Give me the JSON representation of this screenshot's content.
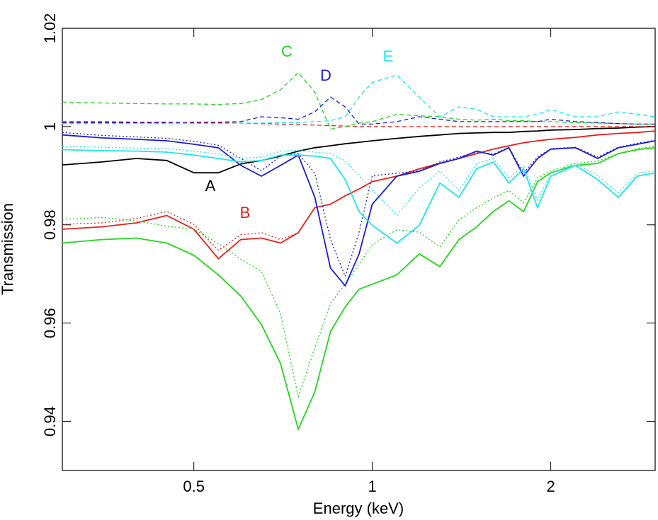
{
  "chart_data": {
    "type": "line",
    "x_label": "Energy (keV)",
    "y_label": "Transmission",
    "log_x": true,
    "xlim": [
      0.3,
      3
    ],
    "xticks": [
      0.5,
      1,
      2
    ],
    "ylim": [
      0.93,
      1.02
    ],
    "yticks": [
      0.94,
      0.96,
      0.98,
      1,
      1.02
    ],
    "x": [
      0.3,
      0.35,
      0.4,
      0.45,
      0.5,
      0.55,
      0.6,
      0.65,
      0.7,
      0.75,
      0.8,
      0.85,
      0.9,
      0.95,
      1.0,
      1.1,
      1.2,
      1.3,
      1.4,
      1.5,
      1.6,
      1.7,
      1.8,
      1.9,
      2.0,
      2.2,
      2.4,
      2.6,
      2.8,
      3.0
    ],
    "series": [
      {
        "name": "A",
        "color": "#000000",
        "line_style": "solid",
        "values": [
          0.9922,
          0.9928,
          0.9935,
          0.9931,
          0.9906,
          0.9906,
          0.9924,
          0.9931,
          0.994,
          0.995,
          0.9957,
          0.9961,
          0.9965,
          0.9968,
          0.9971,
          0.9976,
          0.998,
          0.9983,
          0.9986,
          0.9987,
          0.9988,
          0.9988,
          0.999,
          0.9991,
          0.9993,
          0.9994,
          0.9996,
          0.9997,
          0.9999,
          1.0
        ]
      },
      {
        "name": "B",
        "color": "#e8201c",
        "line_style": "solid",
        "values": [
          0.9791,
          0.9796,
          0.9804,
          0.9819,
          0.9791,
          0.9731,
          0.977,
          0.9773,
          0.9763,
          0.9784,
          0.9835,
          0.9842,
          0.9859,
          0.9873,
          0.9888,
          0.9899,
          0.9914,
          0.9925,
          0.9935,
          0.9945,
          0.9954,
          0.9961,
          0.9967,
          0.9971,
          0.9974,
          0.9978,
          0.9983,
          0.9986,
          0.9988,
          0.9991
        ]
      },
      {
        "color": "#e8201c",
        "line_style": "dotted",
        "values": [
          0.9801,
          0.9804,
          0.9813,
          0.9827,
          0.9801,
          0.9748,
          0.978,
          0.9784,
          0.977,
          0.9784,
          0.9835,
          0.9842,
          0.9859,
          0.9873,
          0.9888,
          0.9899,
          0.9914,
          0.9925,
          0.9935,
          0.9945,
          0.9954,
          0.9961,
          0.9967,
          0.9971,
          0.9974,
          0.9978,
          0.9983,
          0.9986,
          0.9988,
          0.9991
        ]
      },
      {
        "color": "#e8201c",
        "line_style": "dashed",
        "values": [
          1.001,
          1.001,
          1.0009,
          1.0009,
          1.0008,
          1.0008,
          1.0007,
          1.0006,
          1.0005,
          1.0004,
          1.0003,
          1.0002,
          1.0001,
          1.0,
          1.0,
          1.0,
          1.0,
          1.0,
          1.0,
          1.0,
          1.0,
          1.0,
          1.0,
          1.0,
          1.0,
          1.0,
          1.0,
          1.0,
          1.0,
          1.0
        ]
      },
      {
        "name": "C",
        "color": "#22d81c",
        "line_style": "solid",
        "values": [
          0.9763,
          0.977,
          0.9773,
          0.9763,
          0.9738,
          0.9698,
          0.9655,
          0.9597,
          0.9518,
          0.9384,
          0.946,
          0.9583,
          0.9633,
          0.9669,
          0.9679,
          0.9698,
          0.9741,
          0.9715,
          0.977,
          0.9796,
          0.9827,
          0.9849,
          0.9827,
          0.9888,
          0.9906,
          0.9921,
          0.9925,
          0.9945,
          0.9953,
          0.9957
        ]
      },
      {
        "color": "#22d81c",
        "line_style": "dotted",
        "values": [
          0.9811,
          0.9815,
          0.9808,
          0.9797,
          0.9791,
          0.9762,
          0.973,
          0.9705,
          0.962,
          0.945,
          0.955,
          0.964,
          0.968,
          0.972,
          0.976,
          0.979,
          0.9785,
          0.9755,
          0.981,
          0.9835,
          0.9855,
          0.987,
          0.9845,
          0.9895,
          0.991,
          0.9925,
          0.993,
          0.9945,
          0.9955,
          0.996
        ]
      },
      {
        "color": "#22d81c",
        "line_style": "dashed",
        "values": [
          1.005,
          1.0048,
          1.0047,
          1.0046,
          1.0046,
          1.0045,
          1.0047,
          1.0055,
          1.0075,
          1.011,
          1.007,
          0.9995,
          1.0,
          1.0007,
          1.001,
          1.0025,
          1.0022,
          1.002,
          1.0015,
          1.0013,
          1.0015,
          1.0012,
          1.0012,
          1.001,
          1.001,
          1.0008,
          1.0007,
          1.0006,
          1.0005,
          1.0005
        ]
      },
      {
        "name": "D",
        "color": "#1c1cd8",
        "line_style": "solid",
        "values": [
          0.9983,
          0.9977,
          0.9974,
          0.9971,
          0.9964,
          0.9957,
          0.9921,
          0.9899,
          0.9921,
          0.9942,
          0.9856,
          0.9712,
          0.9676,
          0.9741,
          0.9842,
          0.9899,
          0.9909,
          0.9925,
          0.9935,
          0.995,
          0.9942,
          0.9957,
          0.9899,
          0.9935,
          0.9954,
          0.9957,
          0.9935,
          0.9957,
          0.9964,
          0.9971
        ]
      },
      {
        "color": "#1c1cd8",
        "line_style": "dotted",
        "values": [
          0.9988,
          0.9982,
          0.9979,
          0.9976,
          0.997,
          0.9962,
          0.9935,
          0.991,
          0.994,
          0.9945,
          0.9905,
          0.977,
          0.9695,
          0.9785,
          0.99,
          0.9905,
          0.991,
          0.9928,
          0.9938,
          0.9948,
          0.9944,
          0.9958,
          0.9905,
          0.9938,
          0.9955,
          0.9958,
          0.9938,
          0.9958,
          0.9966,
          0.9972
        ]
      },
      {
        "color": "#1c1cd8",
        "line_style": "dashed",
        "values": [
          1.0008,
          1.0008,
          1.0008,
          1.0008,
          1.0009,
          1.0009,
          1.001,
          1.002,
          1.0018,
          1.0015,
          1.003,
          1.006,
          1.004,
          1.0005,
          1.0005,
          1.001,
          1.002,
          1.0015,
          1.001,
          1.001,
          1.001,
          1.001,
          1.001,
          1.001,
          1.0015,
          1.001,
          1.0008,
          1.0006,
          1.0005,
          1.0005
        ]
      },
      {
        "name": "E",
        "color": "#1ce8e8",
        "line_style": "solid",
        "values": [
          0.9953,
          0.9951,
          0.995,
          0.9948,
          0.9942,
          0.9935,
          0.9928,
          0.9931,
          0.9942,
          0.9942,
          0.994,
          0.9935,
          0.9892,
          0.9827,
          0.9799,
          0.9763,
          0.9799,
          0.9885,
          0.9856,
          0.9914,
          0.9928,
          0.9885,
          0.9914,
          0.9835,
          0.9899,
          0.9921,
          0.9892,
          0.9856,
          0.9899,
          0.9906
        ]
      },
      {
        "color": "#1ce8e8",
        "line_style": "dotted",
        "values": [
          0.996,
          0.9958,
          0.9956,
          0.9955,
          0.995,
          0.9944,
          0.9935,
          0.9938,
          0.995,
          0.9952,
          0.9948,
          0.9945,
          0.993,
          0.99,
          0.987,
          0.982,
          0.9875,
          0.991,
          0.987,
          0.9925,
          0.9935,
          0.9895,
          0.992,
          0.985,
          0.9905,
          0.9925,
          0.99,
          0.9865,
          0.9905,
          0.991
        ]
      },
      {
        "color": "#1ce8e8",
        "line_style": "dashed",
        "values": [
          1.0006,
          1.0006,
          1.0006,
          1.0006,
          1.0006,
          1.0006,
          1.0007,
          1.0007,
          1.0008,
          1.0008,
          1.001,
          1.0012,
          1.002,
          1.006,
          1.009,
          1.0105,
          1.006,
          1.002,
          1.004,
          1.0035,
          1.002,
          1.002,
          1.002,
          1.0025,
          1.0035,
          1.002,
          1.002,
          1.003,
          1.0025,
          1.002
        ]
      }
    ]
  }
}
